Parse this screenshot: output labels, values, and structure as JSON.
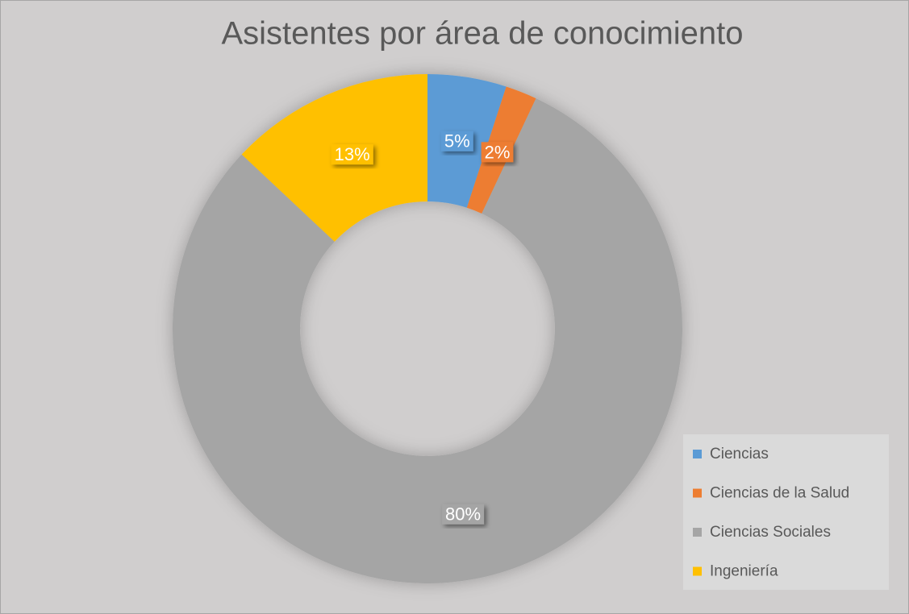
{
  "chart_data": {
    "type": "donut",
    "title": "Asistentes por área de conocimiento",
    "categories": [
      "Ciencias",
      "Ciencias de la Salud",
      "Ciencias Sociales",
      "Ingeniería"
    ],
    "values": [
      5,
      2,
      80,
      13
    ],
    "value_labels": [
      "5%",
      "2%",
      "80%",
      "13%"
    ],
    "colors": [
      "#5b9bd5",
      "#ed7d31",
      "#a5a5a5",
      "#ffc000"
    ],
    "legend": "bottom-right"
  }
}
